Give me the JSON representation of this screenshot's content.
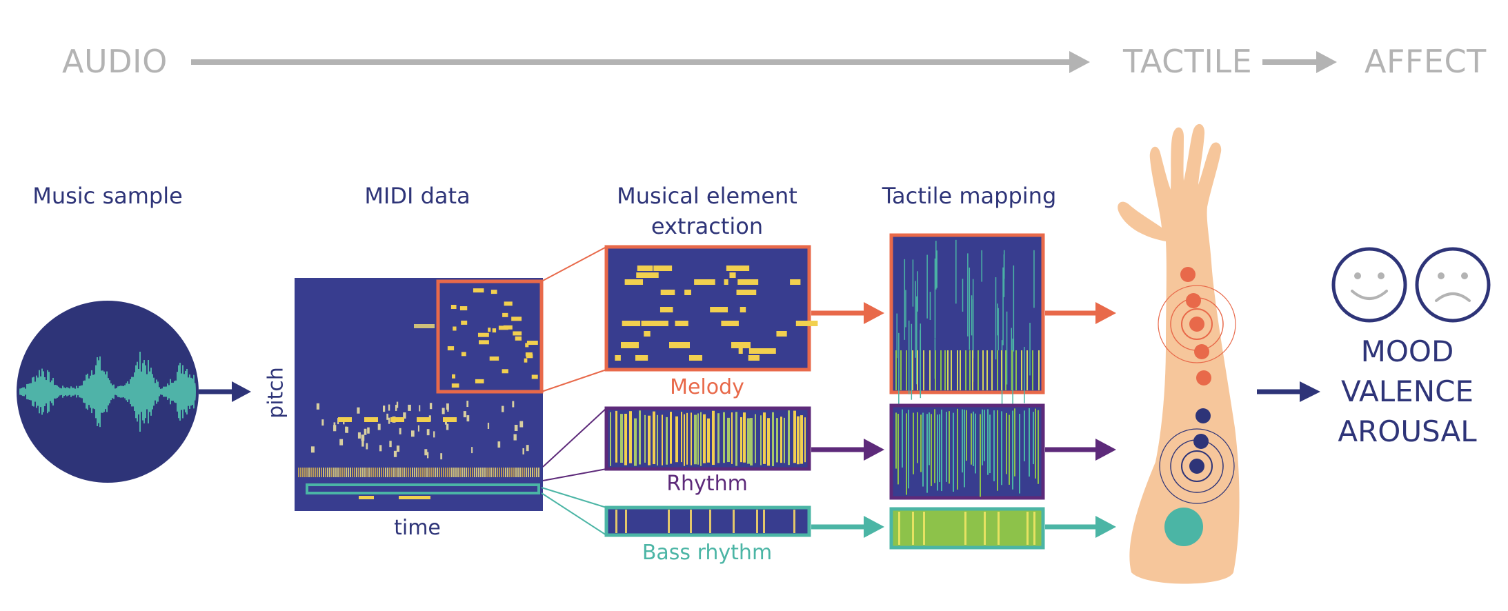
{
  "stages": {
    "audio": "AUDIO",
    "tactile": "TACTILE",
    "affect": "AFFECT"
  },
  "sections": {
    "music_sample": "Music sample",
    "midi_data": "MIDI data",
    "extraction_line1": "Musical element",
    "extraction_line2": "extraction",
    "tactile_mapping": "Tactile mapping"
  },
  "axes": {
    "pitch": "pitch",
    "time": "time"
  },
  "tracks": {
    "melody": "Melody",
    "rhythm": "Rhythm",
    "bass": "Bass rhythm"
  },
  "outcomes": [
    "MOOD",
    "VALENCE",
    "AROUSAL"
  ],
  "colors": {
    "navy": "#2e3478",
    "midi_bg": "#383d8f",
    "melody": "#e8694a",
    "rhythm": "#5d2a7a",
    "bass": "#4bb5a5",
    "note_yellow": "#f2d04f",
    "skin": "#f6c69b",
    "waveform": "#4fb3a8",
    "stage_gray": "#b3b3b3"
  }
}
